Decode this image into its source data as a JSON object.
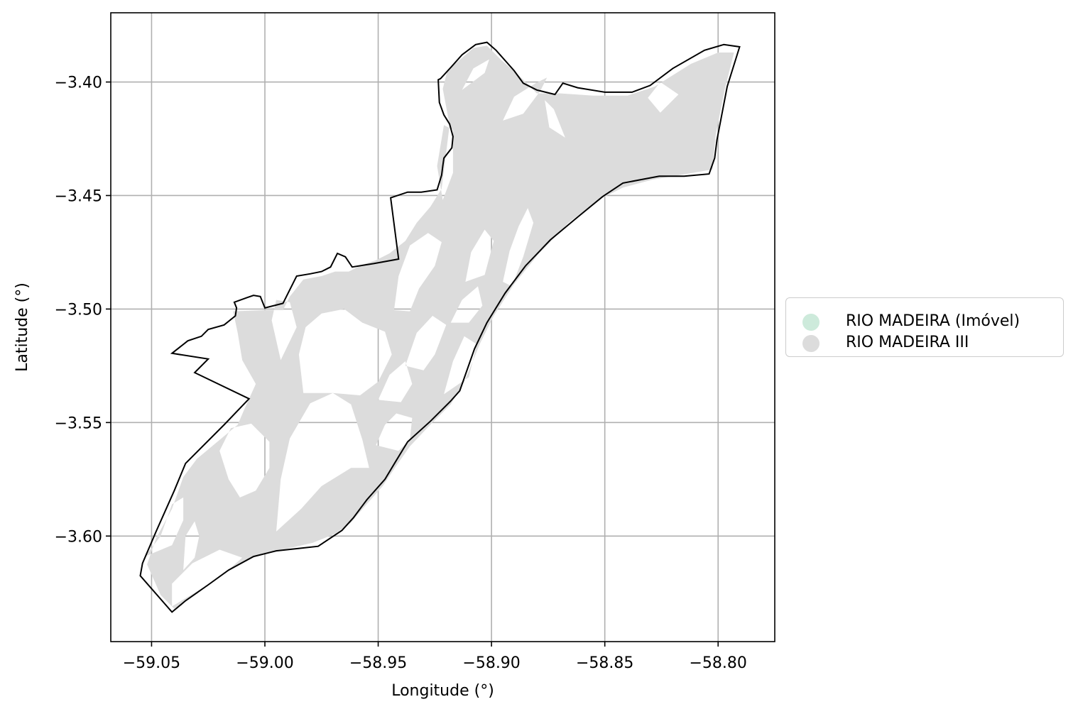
{
  "chart_data": {
    "type": "map",
    "title": "",
    "xlabel": "Longitude (°)",
    "ylabel": "Latitude (°)",
    "xlim": [
      -59.068,
      -58.775
    ],
    "ylim": [
      -3.6465,
      -3.3695
    ],
    "xticks": [
      {
        "value": -59.05,
        "label": "−59.05"
      },
      {
        "value": -59.0,
        "label": "−59.00"
      },
      {
        "value": -58.95,
        "label": "−58.95"
      },
      {
        "value": -58.9,
        "label": "−58.90"
      },
      {
        "value": -58.85,
        "label": "−58.85"
      },
      {
        "value": -58.8,
        "label": "−58.80"
      }
    ],
    "yticks": [
      {
        "value": -3.4,
        "label": "−3.40"
      },
      {
        "value": -3.45,
        "label": "−3.45"
      },
      {
        "value": -3.5,
        "label": "−3.50"
      },
      {
        "value": -3.55,
        "label": "−3.55"
      },
      {
        "value": -3.6,
        "label": "−3.60"
      }
    ],
    "grid": true,
    "legend_position": "right",
    "layers": [
      {
        "name": "RIO MADEIRA (Imóvel)",
        "color": "#cdeadb",
        "style": "outline",
        "edge_color": "#000000"
      },
      {
        "name": "RIO MADEIRA III",
        "color": "#dcdcdc",
        "style": "fill"
      }
    ],
    "boundary": [
      [
        -59.055,
        -3.6175
      ],
      [
        -59.054,
        -3.612
      ],
      [
        -59.048,
        -3.598
      ],
      [
        -59.04,
        -3.58
      ],
      [
        -59.035,
        -3.568
      ],
      [
        -59.018,
        -3.551
      ],
      [
        -59.007,
        -3.5395
      ],
      [
        -59.031,
        -3.528
      ],
      [
        -59.025,
        -3.522
      ],
      [
        -59.041,
        -3.5195
      ],
      [
        -59.034,
        -3.514
      ],
      [
        -59.028,
        -3.512
      ],
      [
        -59.025,
        -3.509
      ],
      [
        -59.018,
        -3.507
      ],
      [
        -59.013,
        -3.503
      ],
      [
        -59.0125,
        -3.4995
      ],
      [
        -59.0135,
        -3.497
      ],
      [
        -59.008,
        -3.495
      ],
      [
        -59.005,
        -3.494
      ],
      [
        -59.002,
        -3.4945
      ],
      [
        -59.0,
        -3.4995
      ],
      [
        -58.992,
        -3.4975
      ],
      [
        -58.99,
        -3.4935
      ],
      [
        -58.986,
        -3.4855
      ],
      [
        -58.98,
        -3.4845
      ],
      [
        -58.975,
        -3.4835
      ],
      [
        -58.971,
        -3.4815
      ],
      [
        -58.968,
        -3.4755
      ],
      [
        -58.9645,
        -3.477
      ],
      [
        -58.9615,
        -3.4815
      ],
      [
        -58.952,
        -3.48
      ],
      [
        -58.941,
        -3.478
      ],
      [
        -58.9445,
        -3.451
      ],
      [
        -58.937,
        -3.4485
      ],
      [
        -58.931,
        -3.4485
      ],
      [
        -58.924,
        -3.4475
      ],
      [
        -58.922,
        -3.441
      ],
      [
        -58.9215,
        -3.437
      ],
      [
        -58.921,
        -3.4335
      ],
      [
        -58.9175,
        -3.429
      ],
      [
        -58.917,
        -3.424
      ],
      [
        -58.9185,
        -3.4185
      ],
      [
        -58.921,
        -3.4145
      ],
      [
        -58.923,
        -3.409
      ],
      [
        -58.9235,
        -3.399
      ],
      [
        -58.9225,
        -3.3985
      ],
      [
        -58.917,
        -3.3925
      ],
      [
        -58.913,
        -3.388
      ],
      [
        -58.907,
        -3.3835
      ],
      [
        -58.902,
        -3.3825
      ],
      [
        -58.898,
        -3.386
      ],
      [
        -58.89,
        -3.395
      ],
      [
        -58.886,
        -3.4005
      ],
      [
        -58.88,
        -3.4035
      ],
      [
        -58.872,
        -3.4055
      ],
      [
        -58.8685,
        -3.4005
      ],
      [
        -58.862,
        -3.4025
      ],
      [
        -58.85,
        -3.4045
      ],
      [
        -58.838,
        -3.4045
      ],
      [
        -58.83,
        -3.4015
      ],
      [
        -58.82,
        -3.394
      ],
      [
        -58.806,
        -3.386
      ],
      [
        -58.7975,
        -3.3835
      ],
      [
        -58.7905,
        -3.3845
      ],
      [
        -58.796,
        -3.402
      ],
      [
        -58.8005,
        -3.4255
      ],
      [
        -58.8015,
        -3.4335
      ],
      [
        -58.804,
        -3.4405
      ],
      [
        -58.815,
        -3.4415
      ],
      [
        -58.826,
        -3.4415
      ],
      [
        -58.842,
        -3.4445
      ],
      [
        -58.851,
        -3.4505
      ],
      [
        -58.862,
        -3.4595
      ],
      [
        -58.874,
        -3.4695
      ],
      [
        -58.885,
        -3.481
      ],
      [
        -58.894,
        -3.493
      ],
      [
        -58.902,
        -3.506
      ],
      [
        -58.9075,
        -3.5175
      ],
      [
        -58.914,
        -3.536
      ],
      [
        -58.918,
        -3.5405
      ],
      [
        -58.927,
        -3.5495
      ],
      [
        -58.937,
        -3.5585
      ],
      [
        -58.9425,
        -3.5675
      ],
      [
        -58.947,
        -3.575
      ],
      [
        -58.955,
        -3.584
      ],
      [
        -58.961,
        -3.592
      ],
      [
        -58.966,
        -3.5975
      ],
      [
        -58.9765,
        -3.6045
      ],
      [
        -58.9855,
        -3.6055
      ],
      [
        -58.995,
        -3.6065
      ],
      [
        -59.005,
        -3.609
      ],
      [
        -59.016,
        -3.615
      ],
      [
        -59.025,
        -3.6215
      ],
      [
        -59.035,
        -3.6285
      ],
      [
        -59.041,
        -3.6335
      ]
    ],
    "land_outer": [
      [
        -59.052,
        -3.6125
      ],
      [
        -59.048,
        -3.601
      ],
      [
        -59.041,
        -3.588
      ],
      [
        -59.036,
        -3.574
      ],
      [
        -59.03,
        -3.566
      ],
      [
        -59.018,
        -3.556
      ],
      [
        -59.012,
        -3.551
      ],
      [
        -59.009,
        -3.544
      ],
      [
        -59.004,
        -3.533
      ],
      [
        -59.01,
        -3.5225
      ],
      [
        -59.012,
        -3.5105
      ],
      [
        -59.014,
        -3.501
      ],
      [
        -59.0,
        -3.5005
      ],
      [
        -58.992,
        -3.5005
      ],
      [
        -58.989,
        -3.4945
      ],
      [
        -58.983,
        -3.487
      ],
      [
        -58.975,
        -3.4855
      ],
      [
        -58.969,
        -3.4835
      ],
      [
        -58.963,
        -3.4835
      ],
      [
        -58.957,
        -3.4805
      ],
      [
        -58.951,
        -3.4785
      ],
      [
        -58.945,
        -3.4755
      ],
      [
        -58.938,
        -3.47
      ],
      [
        -58.933,
        -3.462
      ],
      [
        -58.927,
        -3.455
      ],
      [
        -58.922,
        -3.447
      ],
      [
        -58.9205,
        -3.435
      ],
      [
        -58.9185,
        -3.419
      ],
      [
        -58.9215,
        -3.403
      ],
      [
        -58.9195,
        -3.395
      ],
      [
        -58.908,
        -3.385
      ],
      [
        -58.902,
        -3.384
      ],
      [
        -58.896,
        -3.39
      ],
      [
        -58.888,
        -3.397
      ],
      [
        -58.88,
        -3.405
      ],
      [
        -58.87,
        -3.405
      ],
      [
        -58.855,
        -3.406
      ],
      [
        -58.84,
        -3.406
      ],
      [
        -58.828,
        -3.402
      ],
      [
        -58.812,
        -3.392
      ],
      [
        -58.8,
        -3.387
      ],
      [
        -58.793,
        -3.387
      ],
      [
        -58.797,
        -3.403
      ],
      [
        -58.801,
        -3.423
      ],
      [
        -58.8025,
        -3.4385
      ],
      [
        -58.814,
        -3.4405
      ],
      [
        -58.829,
        -3.443
      ],
      [
        -58.842,
        -3.4465
      ],
      [
        -58.853,
        -3.452
      ],
      [
        -58.866,
        -3.462
      ],
      [
        -58.879,
        -3.4755
      ],
      [
        -58.89,
        -3.489
      ],
      [
        -58.899,
        -3.503
      ],
      [
        -58.905,
        -3.515
      ],
      [
        -58.912,
        -3.532
      ],
      [
        -58.918,
        -3.542
      ],
      [
        -58.927,
        -3.551
      ],
      [
        -58.936,
        -3.5605
      ],
      [
        -58.942,
        -3.569
      ],
      [
        -58.948,
        -3.578
      ],
      [
        -58.956,
        -3.587
      ],
      [
        -58.962,
        -3.594
      ],
      [
        -58.969,
        -3.599
      ],
      [
        -58.979,
        -3.603
      ],
      [
        -58.99,
        -3.6055
      ],
      [
        -59.0005,
        -3.6075
      ],
      [
        -59.011,
        -3.612
      ],
      [
        -59.02,
        -3.6175
      ],
      [
        -59.03,
        -3.6255
      ],
      [
        -59.04,
        -3.632
      ],
      [
        -59.046,
        -3.626
      ]
    ],
    "land_holes": [
      [
        [
          -59.053,
          -3.609
        ],
        [
          -59.041,
          -3.604
        ],
        [
          -59.036,
          -3.593
        ],
        [
          -59.036,
          -3.583
        ],
        [
          -59.041,
          -3.586
        ],
        [
          -59.046,
          -3.6
        ]
      ],
      [
        [
          -59.036,
          -3.615
        ],
        [
          -59.031,
          -3.6095
        ],
        [
          -59.029,
          -3.6
        ],
        [
          -59.031,
          -3.5935
        ],
        [
          -59.035,
          -3.6
        ]
      ],
      [
        [
          -59.041,
          -3.631
        ],
        [
          -59.031,
          -3.625
        ],
        [
          -59.019,
          -3.6175
        ],
        [
          -59.01,
          -3.6095
        ],
        [
          -59.02,
          -3.606
        ],
        [
          -59.032,
          -3.612
        ],
        [
          -59.041,
          -3.621
        ]
      ],
      [
        [
          -59.011,
          -3.583
        ],
        [
          -59.016,
          -3.575
        ],
        [
          -59.02,
          -3.5625
        ],
        [
          -59.015,
          -3.5525
        ],
        [
          -59.006,
          -3.5505
        ],
        [
          -58.998,
          -3.5585
        ],
        [
          -58.998,
          -3.57
        ],
        [
          -59.004,
          -3.58
        ]
      ],
      [
        [
          -58.995,
          -3.598
        ],
        [
          -58.993,
          -3.575
        ],
        [
          -58.989,
          -3.557
        ],
        [
          -58.98,
          -3.5415
        ],
        [
          -58.97,
          -3.537
        ],
        [
          -58.962,
          -3.542
        ],
        [
          -58.957,
          -3.5575
        ],
        [
          -58.954,
          -3.57
        ],
        [
          -58.962,
          -3.57
        ],
        [
          -58.975,
          -3.578
        ],
        [
          -58.984,
          -3.588
        ]
      ],
      [
        [
          -58.983,
          -3.537
        ],
        [
          -58.985,
          -3.52
        ],
        [
          -58.982,
          -3.508
        ],
        [
          -58.975,
          -3.502
        ],
        [
          -58.965,
          -3.5
        ],
        [
          -58.957,
          -3.506
        ],
        [
          -58.947,
          -3.51
        ],
        [
          -58.944,
          -3.52
        ],
        [
          -58.95,
          -3.532
        ],
        [
          -58.958,
          -3.538
        ],
        [
          -58.97,
          -3.537
        ]
      ],
      [
        [
          -58.993,
          -3.5225
        ],
        [
          -58.997,
          -3.505
        ],
        [
          -58.995,
          -3.496
        ],
        [
          -58.989,
          -3.497
        ],
        [
          -58.986,
          -3.508
        ]
      ],
      [
        [
          -58.951,
          -3.56
        ],
        [
          -58.947,
          -3.551
        ],
        [
          -58.942,
          -3.546
        ],
        [
          -58.935,
          -3.548
        ],
        [
          -58.936,
          -3.5575
        ],
        [
          -58.941,
          -3.5625
        ]
      ],
      [
        [
          -58.95,
          -3.54
        ],
        [
          -58.945,
          -3.529
        ],
        [
          -58.938,
          -3.523
        ],
        [
          -58.935,
          -3.533
        ],
        [
          -58.94,
          -3.541
        ]
      ],
      [
        [
          -58.943,
          -3.5005
        ],
        [
          -58.941,
          -3.4855
        ],
        [
          -58.936,
          -3.472
        ],
        [
          -58.928,
          -3.4665
        ],
        [
          -58.922,
          -3.4705
        ],
        [
          -58.925,
          -3.481
        ],
        [
          -58.932,
          -3.491
        ],
        [
          -58.936,
          -3.501
        ]
      ],
      [
        [
          -58.938,
          -3.525
        ],
        [
          -58.933,
          -3.5105
        ],
        [
          -58.926,
          -3.503
        ],
        [
          -58.92,
          -3.507
        ],
        [
          -58.925,
          -3.52
        ],
        [
          -58.93,
          -3.527
        ]
      ],
      [
        [
          -58.921,
          -3.5375
        ],
        [
          -58.917,
          -3.523
        ],
        [
          -58.912,
          -3.512
        ],
        [
          -58.9065,
          -3.5155
        ],
        [
          -58.91,
          -3.53
        ]
      ],
      [
        [
          -58.918,
          -3.506
        ],
        [
          -58.913,
          -3.496
        ],
        [
          -58.906,
          -3.49
        ],
        [
          -58.904,
          -3.4985
        ],
        [
          -58.91,
          -3.506
        ]
      ],
      [
        [
          -58.9115,
          -3.488
        ],
        [
          -58.909,
          -3.475
        ],
        [
          -58.903,
          -3.465
        ],
        [
          -58.899,
          -3.47
        ],
        [
          -58.903,
          -3.485
        ]
      ],
      [
        [
          -58.9215,
          -3.452
        ],
        [
          -58.924,
          -3.437
        ],
        [
          -58.921,
          -3.419
        ],
        [
          -58.917,
          -3.421
        ],
        [
          -58.917,
          -3.44
        ]
      ],
      [
        [
          -58.895,
          -3.417
        ],
        [
          -58.89,
          -3.4065
        ],
        [
          -58.8805,
          -3.4005
        ],
        [
          -58.8755,
          -3.398
        ],
        [
          -58.8785,
          -3.404
        ],
        [
          -58.886,
          -3.414
        ]
      ],
      [
        [
          -58.913,
          -3.4035
        ],
        [
          -58.908,
          -3.394
        ],
        [
          -58.901,
          -3.39
        ],
        [
          -58.903,
          -3.396
        ]
      ],
      [
        [
          -58.8675,
          -3.4245
        ],
        [
          -58.8725,
          -3.412
        ],
        [
          -58.8765,
          -3.408
        ],
        [
          -58.8745,
          -3.42
        ]
      ],
      [
        [
          -58.8255,
          -3.4135
        ],
        [
          -58.8175,
          -3.4055
        ],
        [
          -58.8255,
          -3.4
        ],
        [
          -58.831,
          -3.407
        ]
      ],
      [
        [
          -58.895,
          -3.488
        ],
        [
          -58.892,
          -3.4745
        ],
        [
          -58.888,
          -3.4635
        ],
        [
          -58.884,
          -3.4555
        ],
        [
          -58.8815,
          -3.462
        ],
        [
          -58.886,
          -3.477
        ],
        [
          -58.891,
          -3.49
        ]
      ]
    ]
  },
  "legend": {
    "items": [
      {
        "label": "RIO MADEIRA (Imóvel)",
        "color": "#cdeadb"
      },
      {
        "label": "RIO MADEIRA III",
        "color": "#dcdcdc"
      }
    ]
  }
}
